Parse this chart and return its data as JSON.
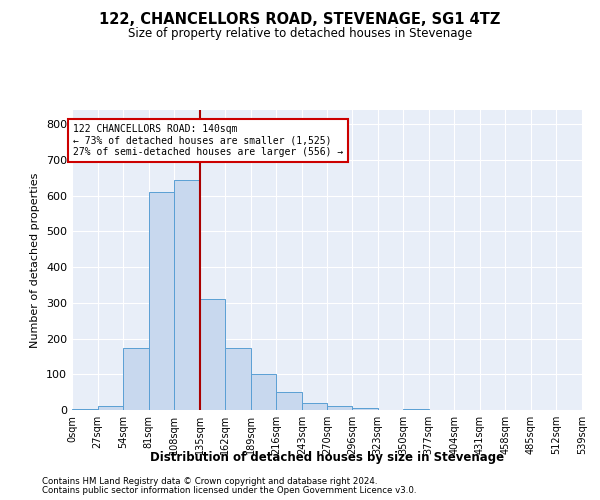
{
  "title": "122, CHANCELLORS ROAD, STEVENAGE, SG1 4TZ",
  "subtitle": "Size of property relative to detached houses in Stevenage",
  "xlabel": "Distribution of detached houses by size in Stevenage",
  "ylabel": "Number of detached properties",
  "bar_color": "#c8d8ee",
  "bar_edge_color": "#5a9fd4",
  "background_color": "#e8eef8",
  "grid_color": "#ffffff",
  "annotation_box_color": "#cc0000",
  "vline_color": "#aa0000",
  "vline_x": 135,
  "annotation_line1": "122 CHANCELLORS ROAD: 140sqm",
  "annotation_line2": "← 73% of detached houses are smaller (1,525)",
  "annotation_line3": "27% of semi-detached houses are larger (556) →",
  "footnote1": "Contains HM Land Registry data © Crown copyright and database right 2024.",
  "footnote2": "Contains public sector information licensed under the Open Government Licence v3.0.",
  "bin_edges": [
    0,
    27,
    54,
    81,
    108,
    135,
    162,
    189,
    216,
    243,
    270,
    296,
    323,
    350,
    377,
    404,
    431,
    458,
    485,
    512,
    539
  ],
  "bar_heights": [
    3,
    10,
    175,
    610,
    645,
    310,
    175,
    100,
    50,
    20,
    10,
    5,
    0,
    3,
    0,
    0,
    0,
    0,
    0,
    0
  ],
  "ylim": [
    0,
    840
  ],
  "yticks": [
    0,
    100,
    200,
    300,
    400,
    500,
    600,
    700,
    800
  ]
}
